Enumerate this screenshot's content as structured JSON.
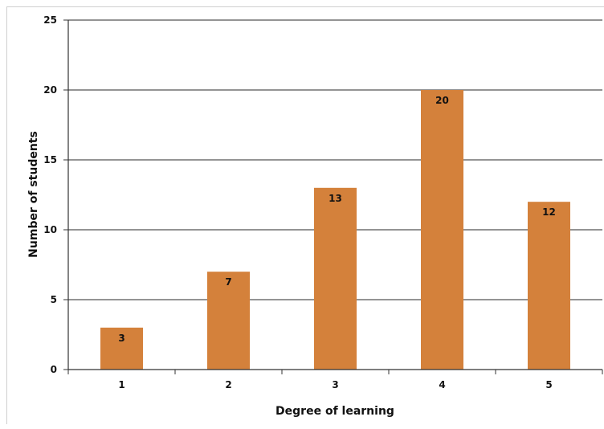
{
  "chart_data": {
    "type": "bar",
    "categories": [
      "1",
      "2",
      "3",
      "4",
      "5"
    ],
    "values": [
      3,
      7,
      13,
      20,
      12
    ],
    "data_labels": [
      "3",
      "7",
      "13",
      "20",
      "12"
    ],
    "xlabel": "Degree of learning",
    "ylabel": "Number of students",
    "ylim": [
      0,
      25
    ],
    "yticks": [
      "0",
      "5",
      "10",
      "15",
      "20",
      "25"
    ],
    "grid": true,
    "bar_color": "#d4813b",
    "gridline_color": "#555555"
  }
}
